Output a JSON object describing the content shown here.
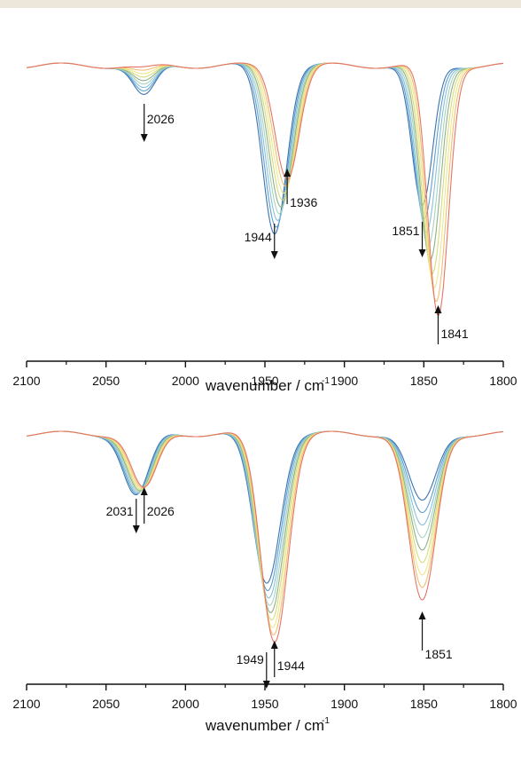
{
  "colors": {
    "banner": "#ece6db",
    "arrow": "#111111",
    "series": [
      "#3a73b0",
      "#5f9fd0",
      "#88c0dc",
      "#a7d4bc",
      "#8fb08a",
      "#d6dc7e",
      "#efe68a",
      "#f0bf6f",
      "#e57466"
    ]
  },
  "chart_data": [
    {
      "type": "line",
      "xlabel_main": "wavenumber / cm",
      "xlabel_sup": "-1",
      "x_reversed": true,
      "xlim": [
        2100,
        1800
      ],
      "x_ticks": [
        2100,
        2050,
        2000,
        1950,
        1900,
        1850,
        1800
      ],
      "y_axis_shown": false,
      "series_count": 9,
      "peaks": [
        {
          "center": 2026,
          "width": 7,
          "depth_start": 0.14,
          "depth_end": 0.015
        },
        {
          "center_start": 1944,
          "center_end": 1936,
          "width": 7.5,
          "depth_start": 0.75,
          "depth_end": 0.5
        },
        {
          "center_start": 1851,
          "center_end": 1841,
          "width": 6.5,
          "depth_start": 0.64,
          "depth_end": 1.13
        }
      ],
      "annotations": [
        {
          "label": "2026",
          "x": 2026,
          "direction": "down"
        },
        {
          "label": "1944",
          "x": 1944,
          "direction": "down"
        },
        {
          "label": "1936",
          "x": 1936,
          "direction": "up"
        },
        {
          "label": "1851",
          "x": 1851,
          "direction": "down"
        },
        {
          "label": "1841",
          "x": 1841,
          "direction": "up"
        }
      ]
    },
    {
      "type": "line",
      "xlabel_main": "wavenumber / cm",
      "xlabel_sup": "-1",
      "x_reversed": true,
      "xlim": [
        2100,
        1800
      ],
      "x_ticks": [
        2100,
        2050,
        2000,
        1950,
        1900,
        1850,
        1800
      ],
      "y_axis_shown": false,
      "series_count": 9,
      "peaks": [
        {
          "center_start": 2031,
          "center_end": 2026,
          "width": 8,
          "depth_start": 0.28,
          "depth_end": 0.25
        },
        {
          "center_start": 1949,
          "center_end": 1944,
          "width": 8.5,
          "depth_start": 0.67,
          "depth_end": 0.93
        },
        {
          "center": 1851,
          "width": 8.5,
          "depth_start": 0.31,
          "depth_end": 0.76
        }
      ],
      "annotations": [
        {
          "label": "2031",
          "x": 2031,
          "direction": "down"
        },
        {
          "label": "2026",
          "x": 2026,
          "direction": "up"
        },
        {
          "label": "1949",
          "x": 1949,
          "direction": "down"
        },
        {
          "label": "1944",
          "x": 1944,
          "direction": "up"
        },
        {
          "label": "1851",
          "x": 1851,
          "direction": "up"
        }
      ]
    }
  ]
}
